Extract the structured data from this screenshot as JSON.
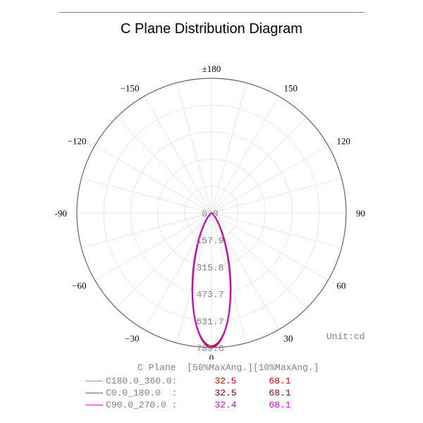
{
  "title": "C Plane Distribution Diagram",
  "chart_data": {
    "type": "polar",
    "angle_labels": [
      {
        "angle": 180,
        "text": "±180"
      },
      {
        "angle": 150,
        "text": "150"
      },
      {
        "angle": -150,
        "text": "−150"
      },
      {
        "angle": 120,
        "text": "120"
      },
      {
        "angle": -120,
        "text": "−120"
      },
      {
        "angle": 90,
        "text": "90"
      },
      {
        "angle": -90,
        "text": "-90"
      },
      {
        "angle": 60,
        "text": "60"
      },
      {
        "angle": -60,
        "text": "−60"
      },
      {
        "angle": 30,
        "text": "30"
      },
      {
        "angle": -30,
        "text": "−30"
      },
      {
        "angle": 0,
        "text": "0"
      }
    ],
    "radial_ticks": [
      "0.0",
      "157.9",
      "315.8",
      "473.7",
      "631.7",
      "789.6"
    ],
    "rmax": 789.6,
    "unit_label": "Unit:cd",
    "series": [
      {
        "name": "C180.0_360.0:",
        "color": "#cc0000",
        "half_angle_deg": 33.0,
        "peak": 780
      },
      {
        "name": "C0.0_180.0  :",
        "color": "#8b1a1a",
        "half_angle_deg": 33.0,
        "peak": 785
      },
      {
        "name": "C90.0_270.0 :",
        "color": "#dd00dd",
        "half_angle_deg": 32.0,
        "peak": 789.6
      }
    ]
  },
  "legend": {
    "header": "C Plane  [50%MaxAng.][10%MaxAng.]",
    "rows": [
      {
        "name": "C180.0_360.0:",
        "v50": "32.5",
        "v10": "68.1",
        "line_color": "#e08070",
        "text_color": "#cc0000"
      },
      {
        "name": "C0.0_180.0  :",
        "v50": "32.5",
        "v10": "68.1",
        "line_color": "#a05040",
        "text_color": "#8b0000"
      },
      {
        "name": "C90.0_270.0 :",
        "v50": "32.4",
        "v10": "68.1",
        "line_color": "#ee00ee",
        "text_color": "#dd00dd"
      }
    ]
  }
}
